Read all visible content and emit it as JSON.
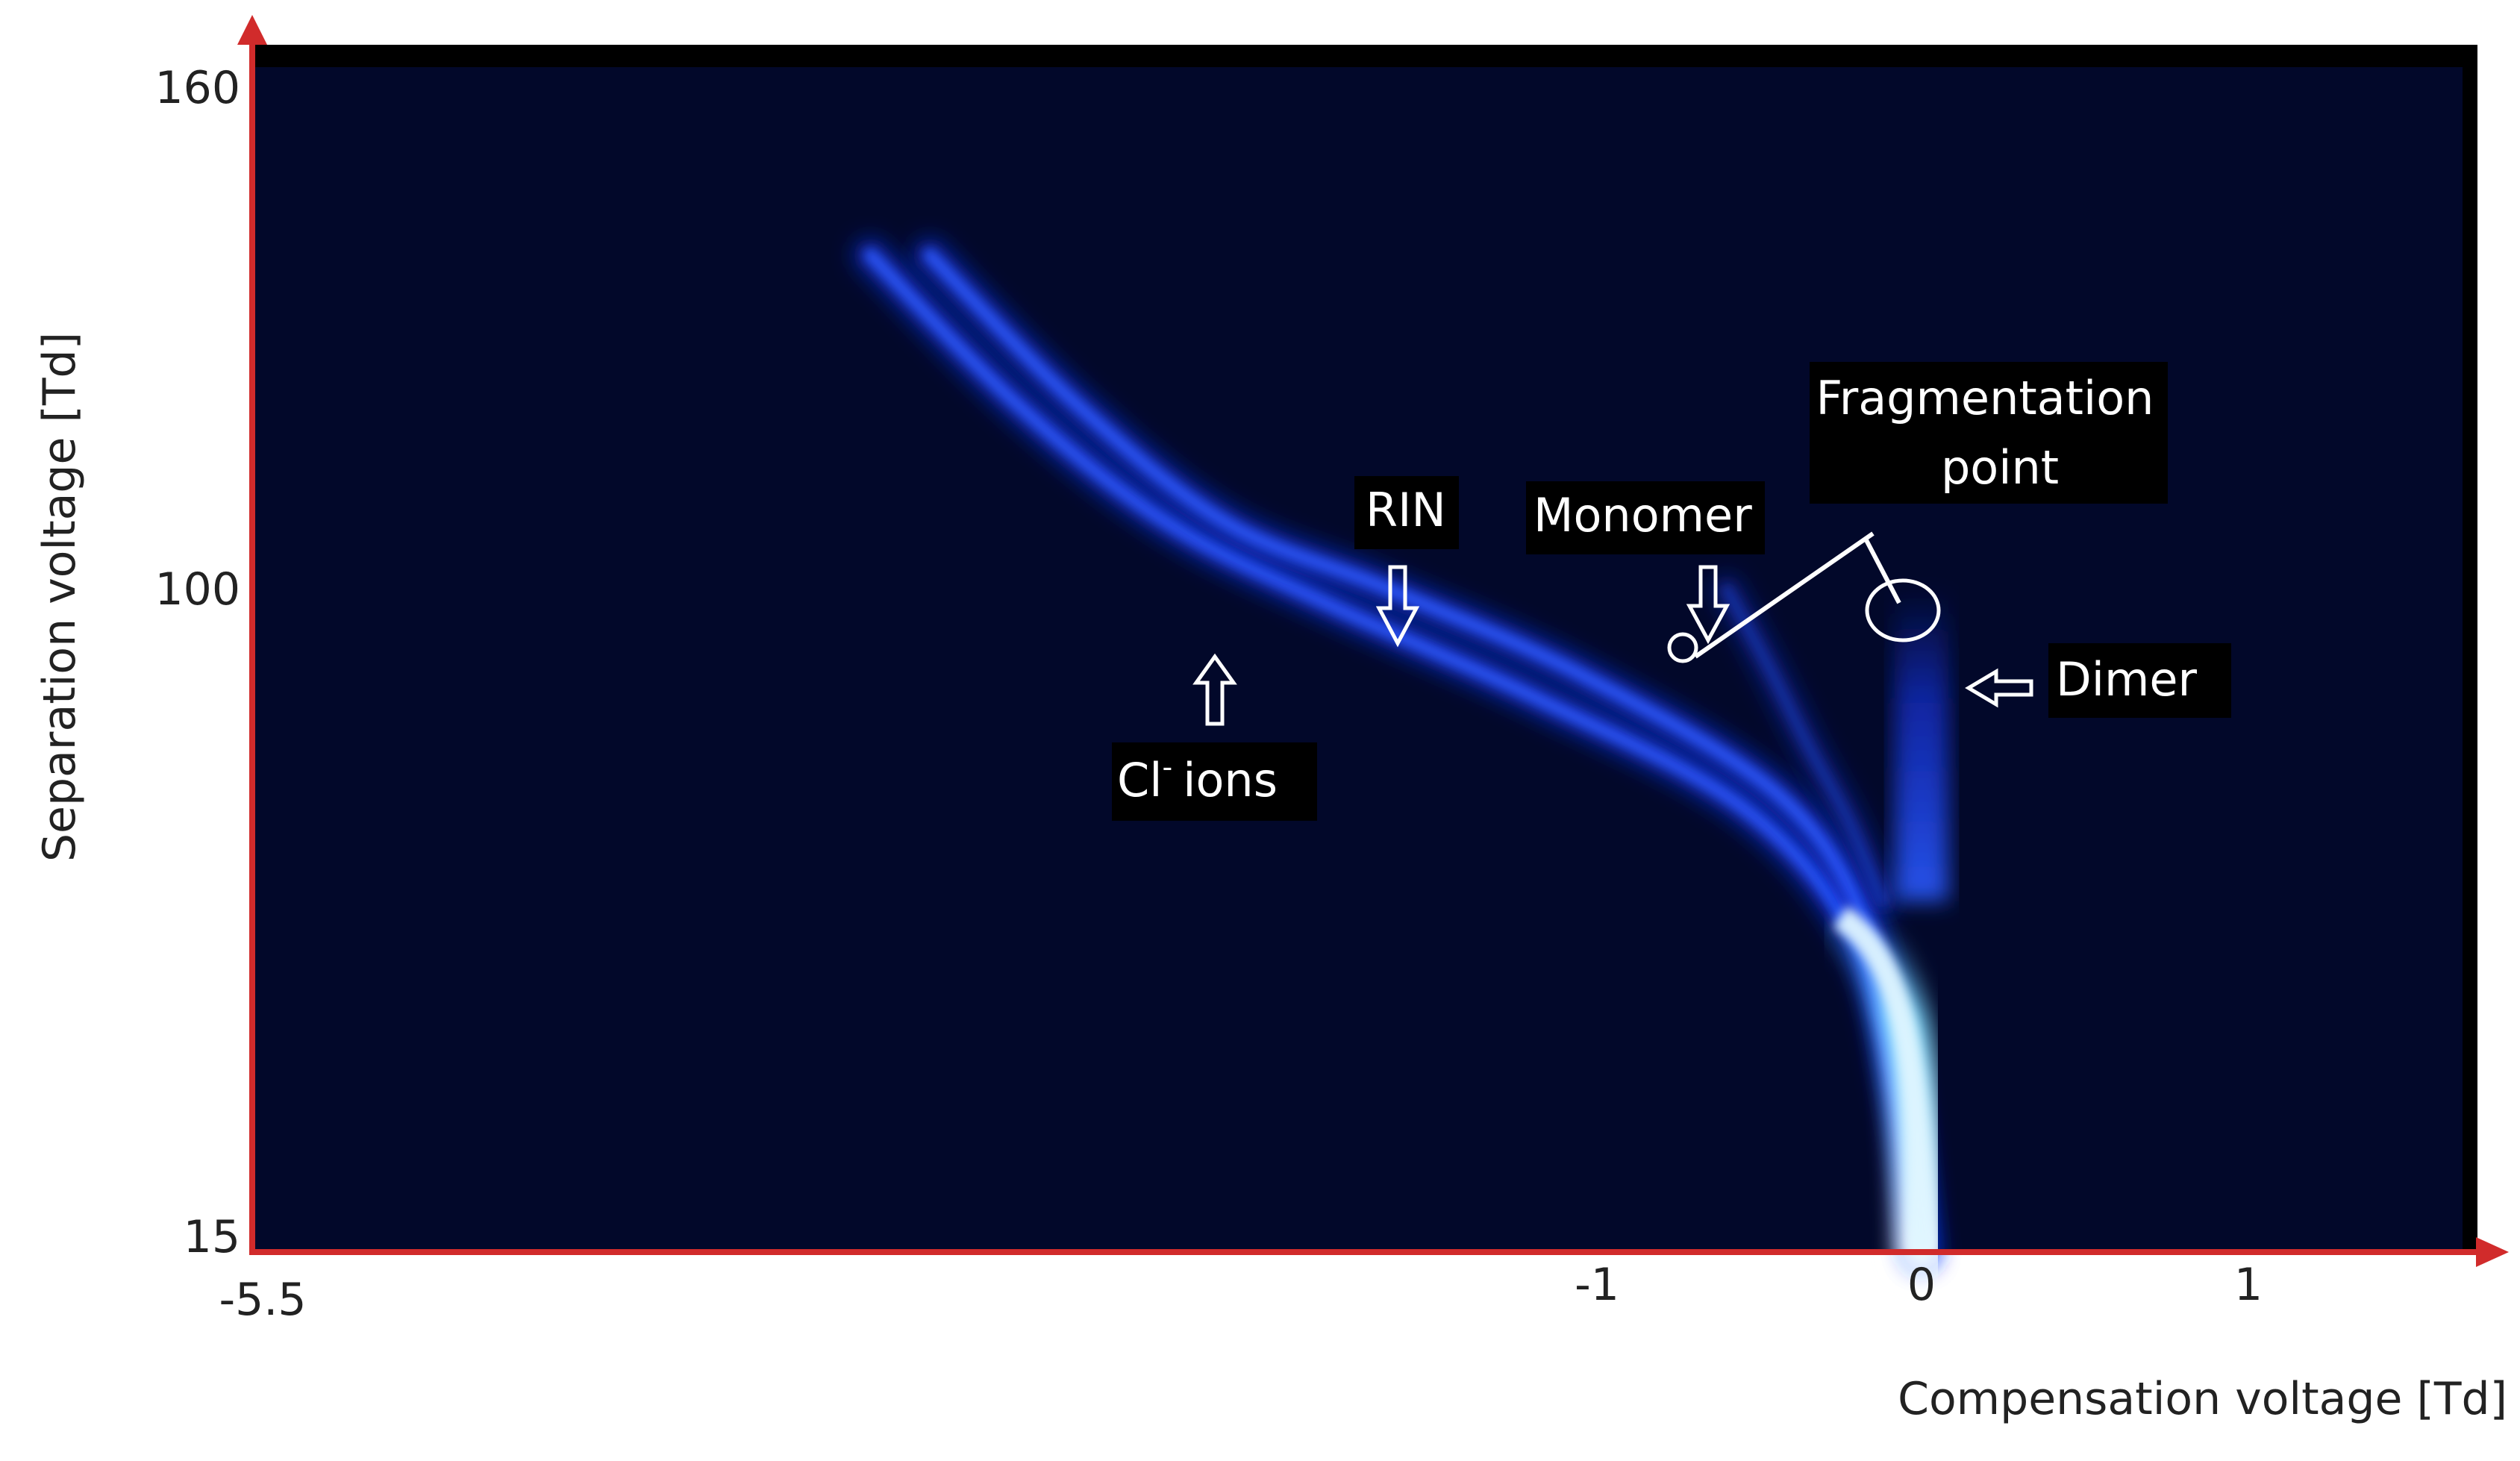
{
  "chart_data": {
    "type": "heatmap",
    "title": "",
    "xlabel": "Compensation voltage [Td]",
    "ylabel": "Separation voltage [Td]",
    "x_ticks": [
      {
        "value": -5.5,
        "label": "-5.5"
      },
      {
        "value": -1,
        "label": "-1"
      },
      {
        "value": 0,
        "label": "0"
      },
      {
        "value": 1,
        "label": "1"
      }
    ],
    "y_ticks": [
      {
        "value": 160,
        "label": "160"
      },
      {
        "value": 100,
        "label": "100"
      },
      {
        "value": 15,
        "label": "15"
      }
    ],
    "grid": false,
    "background_color": "#02082a",
    "band_color": "#1a3cff",
    "peak_color": "#dff6ff",
    "axis_color": "#d12b2b",
    "series": [
      {
        "name": "Cl- ions",
        "x": [
          -3.45,
          -2.95,
          -2.45,
          -1.9,
          -1.2,
          -0.55,
          -0.2,
          -0.07,
          0.0
        ],
        "y": [
          140,
          122,
          108,
          98,
          86,
          72,
          55,
          35,
          15
        ]
      },
      {
        "name": "RIN",
        "x": [
          -3.25,
          -2.75,
          -2.25,
          -1.7,
          -1.05,
          -0.45,
          -0.18,
          -0.06,
          0.0
        ],
        "y": [
          140,
          122,
          108,
          100,
          89,
          74,
          58,
          37,
          15
        ]
      },
      {
        "name": "Monomer",
        "x": [
          -0.6,
          -0.47,
          -0.35,
          -0.22,
          -0.12
        ],
        "y": [
          100,
          90,
          80,
          70,
          60
        ]
      },
      {
        "name": "Dimer",
        "x": [
          0.0,
          0.0,
          0.0,
          0.0,
          0.0
        ],
        "y": [
          100,
          90,
          80,
          70,
          60
        ]
      }
    ],
    "annotations": [
      {
        "id": "cl",
        "sup": "-",
        "lines": [
          "Cl",
          "ions"
        ]
      },
      {
        "id": "rin",
        "lines": [
          "RIN"
        ]
      },
      {
        "id": "monomer",
        "lines": [
          "Monomer"
        ]
      },
      {
        "id": "fragmentation",
        "lines": [
          "Fragmentation",
          "point"
        ]
      },
      {
        "id": "dimer",
        "lines": [
          "Dimer"
        ]
      }
    ]
  }
}
